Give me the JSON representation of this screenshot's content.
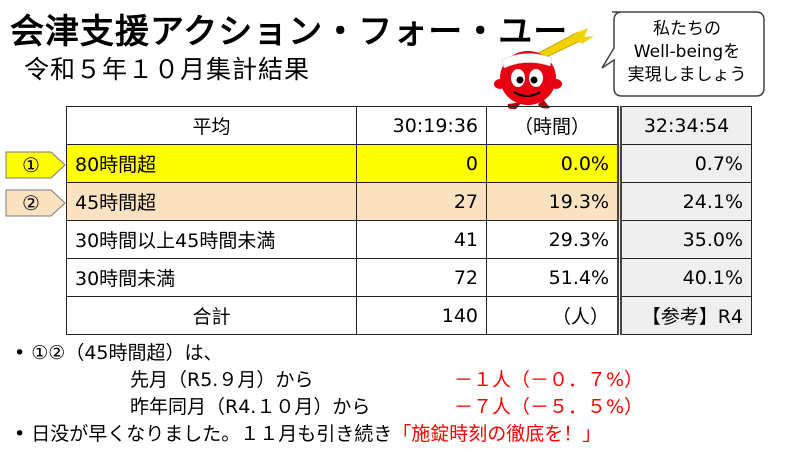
{
  "header": {
    "title": "会津支援アクション・フォー・ユー",
    "subtitle": "令和５年１０月集計結果"
  },
  "bubble": {
    "lines": [
      "私たちの",
      "Well-beingを",
      "実現しましょう"
    ]
  },
  "table": {
    "header_row": [
      "平均",
      "30:19:36",
      "（時間）",
      "32:34:54"
    ],
    "rows": [
      {
        "marker": "①",
        "label": "80時間超",
        "count": "0",
        "pct": "0.0%",
        "ref": "0.7%"
      },
      {
        "marker": "②",
        "label": "45時間超",
        "count": "27",
        "pct": "19.3%",
        "ref": "24.1%"
      },
      {
        "label": "30時間以上45時間未満",
        "count": "41",
        "pct": "29.3%",
        "ref": "35.0%"
      },
      {
        "label": "30時間未満",
        "count": "72",
        "pct": "51.4%",
        "ref": "40.1%"
      }
    ],
    "total_row": {
      "label": "合計",
      "count": "140",
      "unit": "（人）",
      "ref": "【参考】R4"
    }
  },
  "notes": {
    "bullet": "•",
    "line1": "①②（45時間超）は、",
    "line2_label": "先月（R5.９月）から",
    "line2_value": "－１人（－０．７%）",
    "line3_label": "昨年同月（R4.１０月）から",
    "line3_value": "－７人（－５．５%）",
    "line4_text": "日没が早くなりました。１１月も引き続き",
    "line4_red": "「施錠時刻の徹底を！」"
  },
  "colors": {
    "row1_highlight": "#ffff00",
    "row2_highlight": "#fbe3c2",
    "reference_column": "#efefef",
    "emphasis": "#ff0000",
    "mascot": "#e60012"
  },
  "icons": [
    "mascot-icon",
    "speech-bubble"
  ]
}
